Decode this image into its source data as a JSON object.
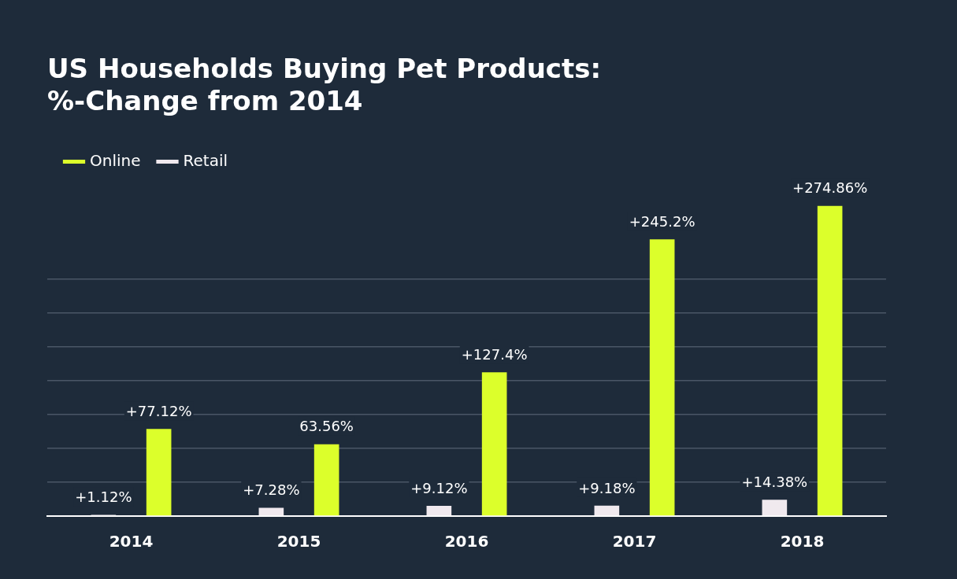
{
  "chart_data": {
    "type": "bar",
    "title": "US Households Buying Pet Products:\n%-Change from 2014",
    "categories": [
      "2014",
      "2015",
      "2016",
      "2017",
      "2018"
    ],
    "series": [
      {
        "name": "Retail",
        "color": "#f0e9ee",
        "values": [
          1.12,
          7.28,
          9.12,
          9.18,
          14.38
        ],
        "value_labels": [
          "+1.12%",
          "+7.28%",
          "+9.12%",
          "+9.18%",
          "+14.38%"
        ]
      },
      {
        "name": "Online",
        "color": "#dcff2b",
        "values": [
          77.12,
          63.56,
          127.4,
          245.2,
          274.86
        ],
        "value_labels": [
          "+77.12%",
          "63.56%",
          "+127.4%",
          "+245.2%",
          "+274.86%"
        ]
      }
    ],
    "yticks": [
      {
        "value": 0,
        "label": null
      },
      {
        "value": 30,
        "label": null
      },
      {
        "value": 60,
        "label": null
      },
      {
        "value": 90,
        "label": null
      },
      {
        "value": 120,
        "label": null
      },
      {
        "value": 150,
        "label": null
      },
      {
        "value": 180,
        "label": null
      },
      {
        "value": 210,
        "label": null
      }
    ],
    "grid": "y",
    "tick_labels": "x",
    "legend": "top left"
  }
}
